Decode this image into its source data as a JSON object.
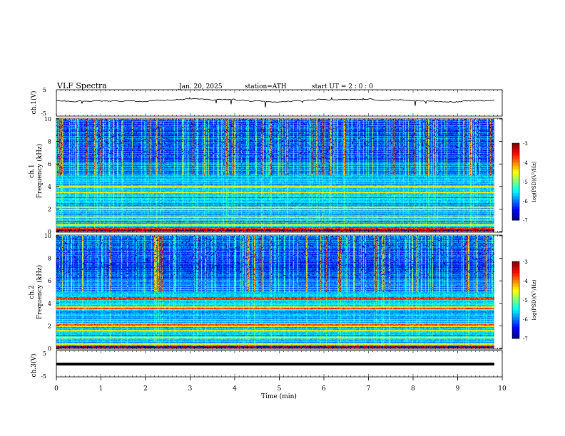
{
  "header": {
    "title": "VLF  Spectra",
    "date": "Jan. 20, 2025",
    "station": "station=ATH",
    "start": "start  UT  =   2  : 0  : 0"
  },
  "chart_data": [
    {
      "type": "line",
      "panel": "ch1-waveform",
      "ylabel": "ch.1(V)",
      "xlim": [
        0,
        10
      ],
      "ylim": [
        -5,
        5
      ],
      "yticks": [
        "5",
        "-5"
      ],
      "series": [
        {
          "level": 0,
          "noise": 0.6
        }
      ]
    },
    {
      "type": "heatmap",
      "panel": "ch1-spectrogram",
      "ylabel": "ch.1\nFrequency  (kHz)",
      "xlim": [
        0,
        9.8
      ],
      "ylim": [
        0,
        10
      ],
      "yticks": [
        "0",
        "2",
        "4",
        "6",
        "8",
        "10"
      ],
      "bands_khz": [
        0.3,
        0.6,
        0.9,
        1.3,
        2.0,
        2.2,
        3.5,
        4.0
      ],
      "colorbar": {
        "label": "log(PSD)(V²/Hz)",
        "range": [
          -7,
          -3
        ],
        "ticks": [
          "-3",
          "-4",
          "-5",
          "-6",
          "-7"
        ]
      }
    },
    {
      "type": "heatmap",
      "panel": "ch2-spectrogram",
      "ylabel": "ch.2\nFrequency  (kHz)",
      "xlim": [
        0,
        9.8
      ],
      "ylim": [
        0,
        10
      ],
      "yticks": [
        "0",
        "2",
        "4",
        "6",
        "8",
        "10"
      ],
      "bands_khz": [
        0.4,
        1.0,
        1.6,
        2.0,
        2.1,
        2.2,
        3.5,
        3.7,
        4.5
      ],
      "colorbar": {
        "label": "log(PSD)(V²/Hz)",
        "range": [
          -7,
          -3
        ],
        "ticks": [
          "-3",
          "-4",
          "-5",
          "-6",
          "-7"
        ]
      }
    },
    {
      "type": "line",
      "panel": "ch3-waveform",
      "ylabel": "ch.3(V)",
      "xlim": [
        0,
        10
      ],
      "ylim": [
        -5,
        5
      ],
      "yticks": [
        "5",
        "-5"
      ],
      "series": [
        {
          "level": 0,
          "noise": 0.1
        }
      ]
    }
  ],
  "xaxis": {
    "label": "Time  (min)",
    "ticks": [
      "0",
      "1",
      "2",
      "3",
      "4",
      "5",
      "6",
      "7",
      "8",
      "9",
      "10"
    ]
  }
}
